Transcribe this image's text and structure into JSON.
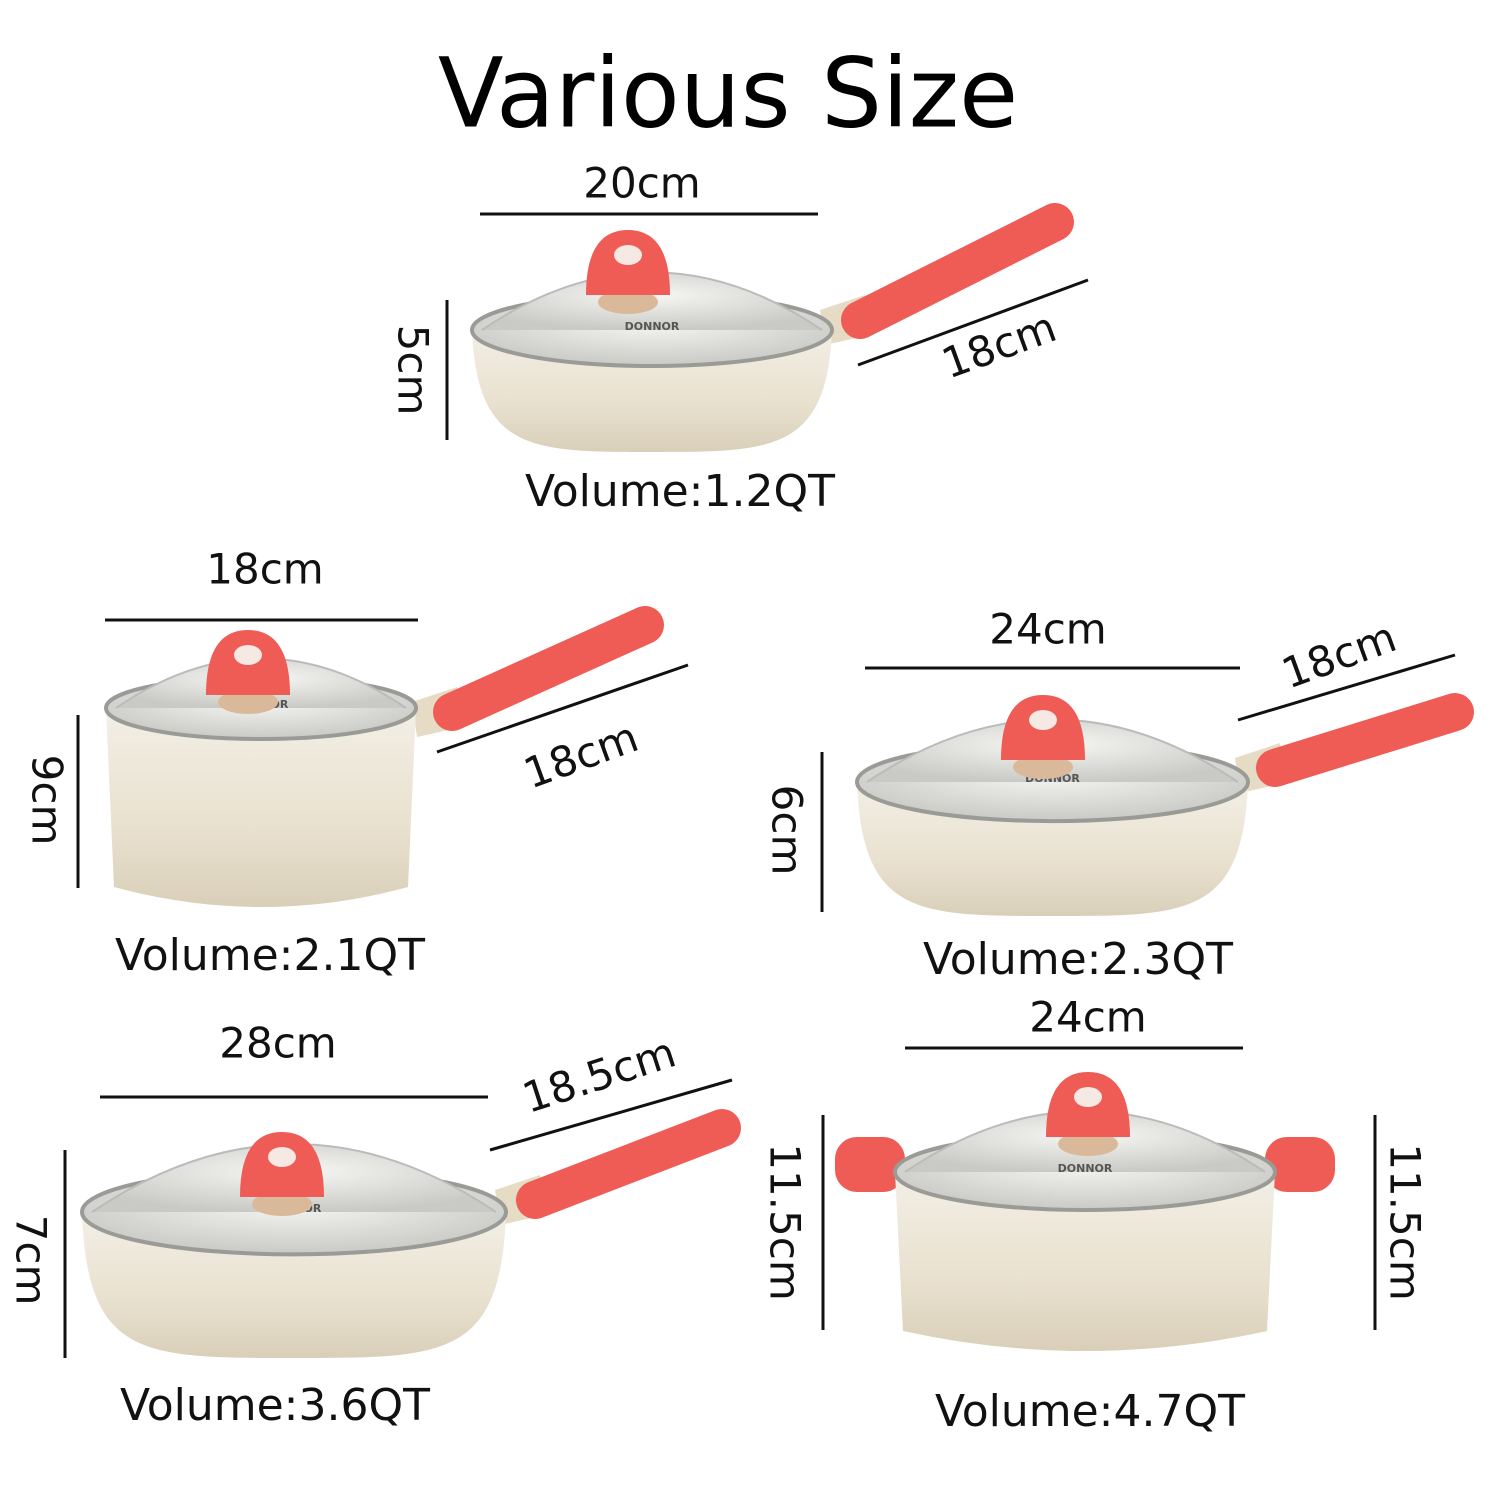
{
  "title": "Various Size",
  "brand": "DONNOR",
  "items": [
    {
      "width": "20cm",
      "height": "5cm",
      "handle": "18cm",
      "volume": "Volume:1.2QT"
    },
    {
      "width": "18cm",
      "height": "9cm",
      "handle": "18cm",
      "volume": "Volume:2.1QT"
    },
    {
      "width": "24cm",
      "height": "6cm",
      "handle": "18cm",
      "volume": "Volume:2.3QT"
    },
    {
      "width": "28cm",
      "height": "7cm",
      "handle": "18.5cm",
      "volume": "Volume:3.6QT"
    },
    {
      "width": "24cm",
      "height_left": "11.5cm",
      "height_right": "11.5cm",
      "volume": "Volume:4.7QT"
    }
  ]
}
